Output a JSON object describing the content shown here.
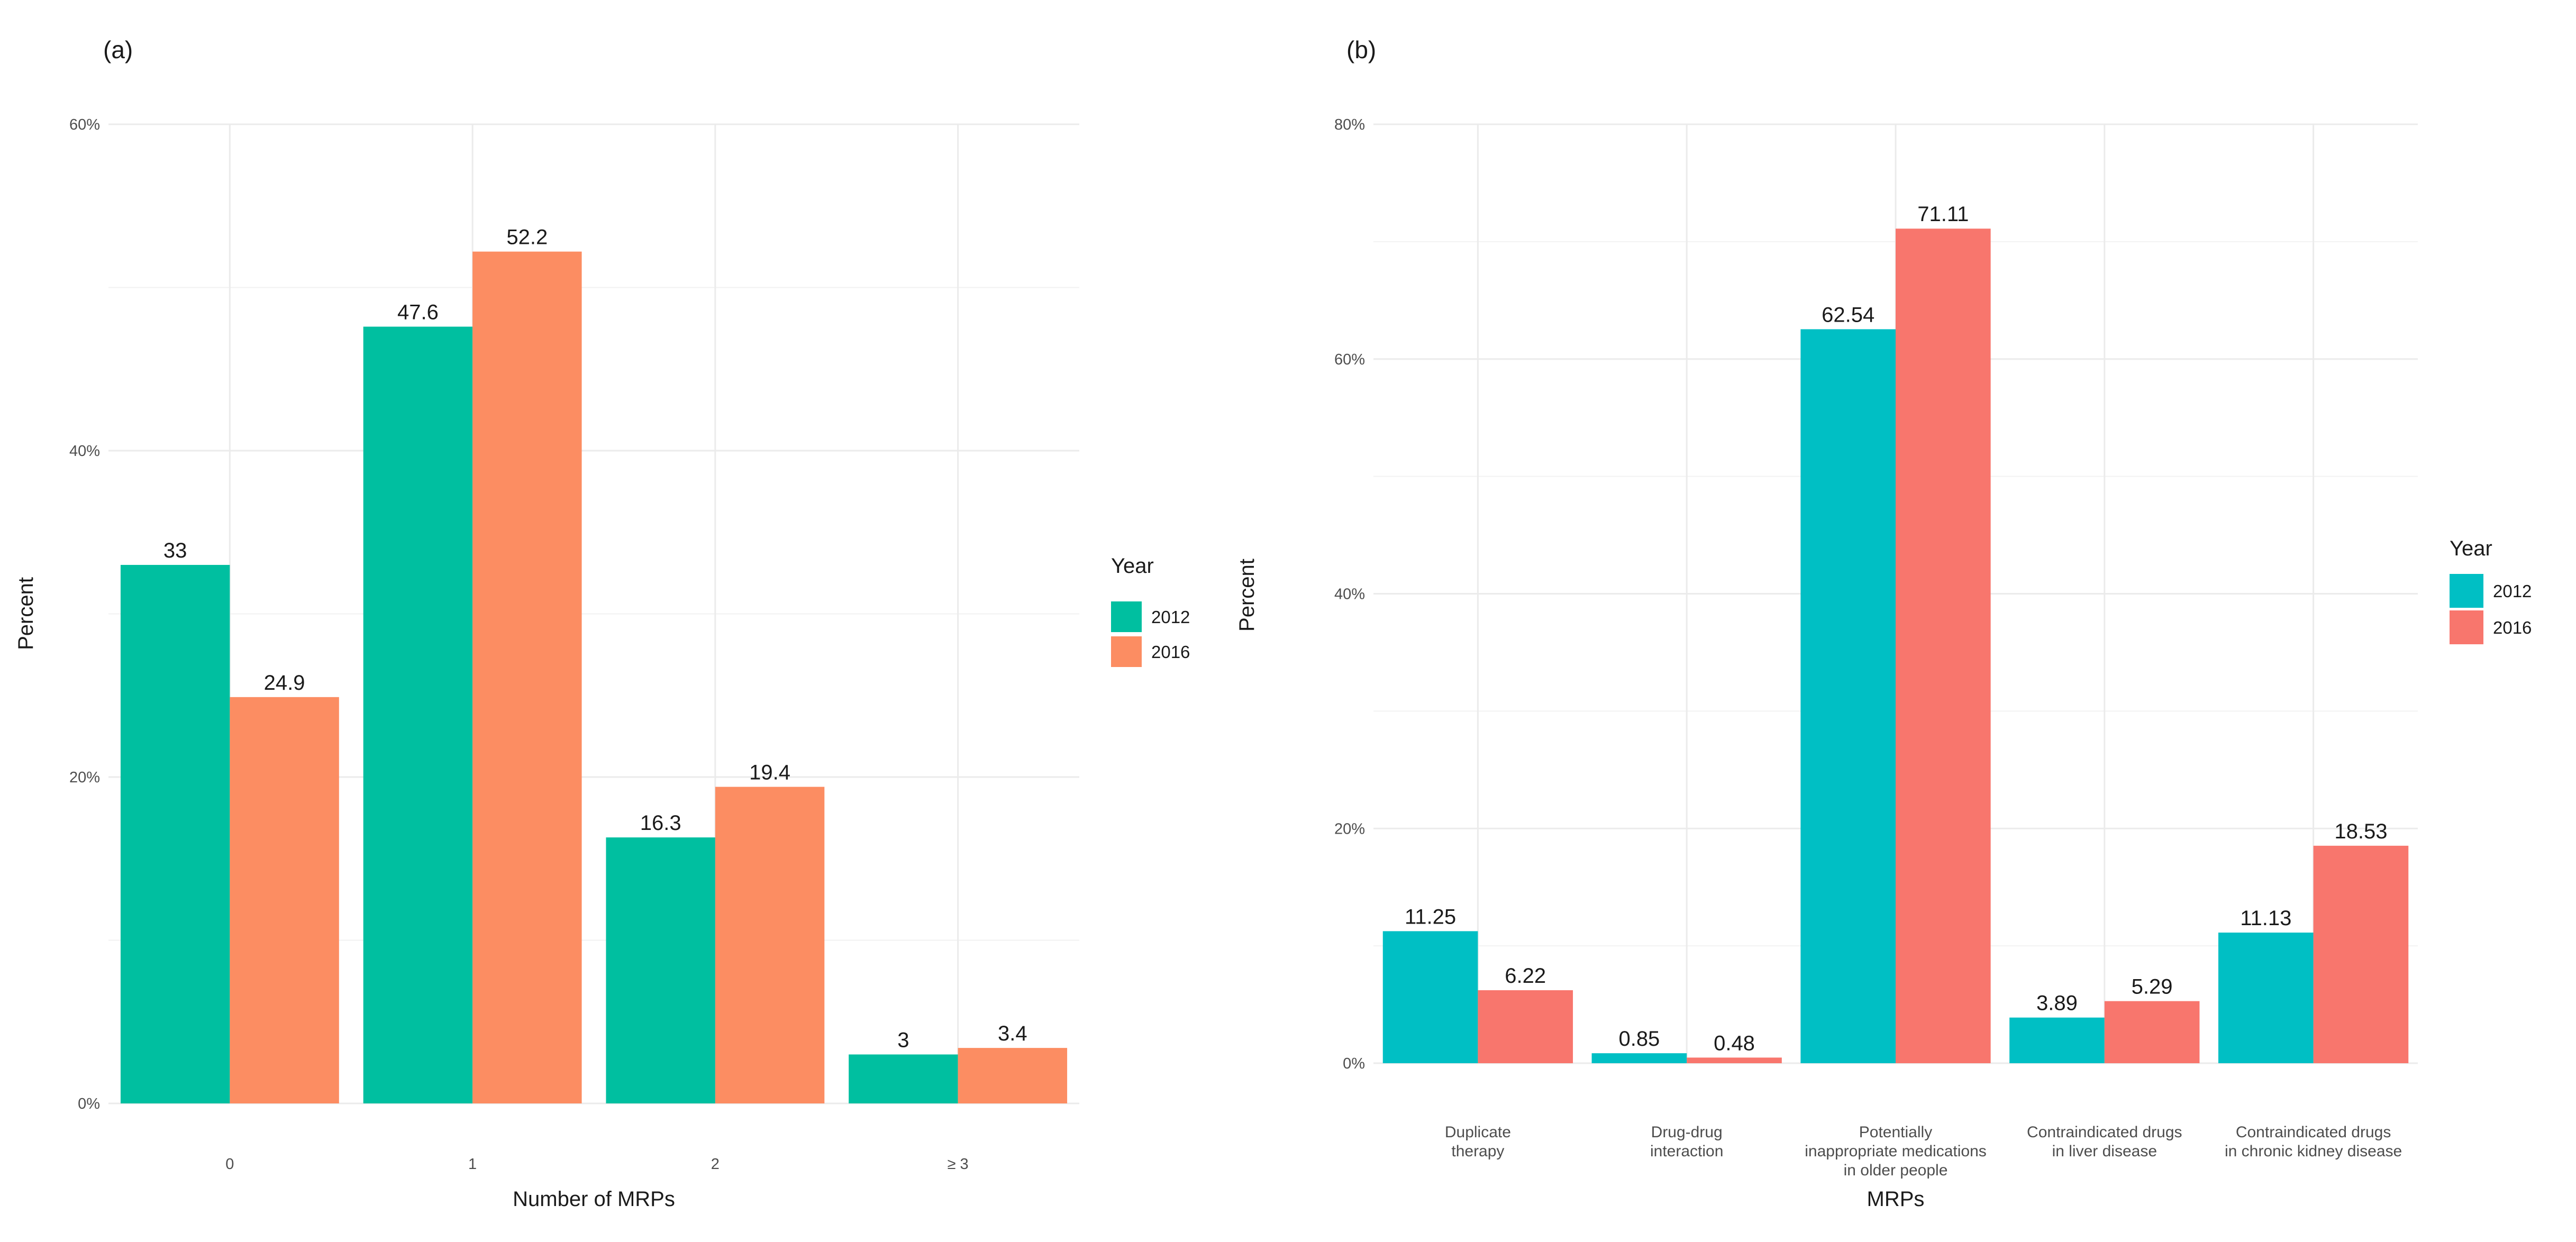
{
  "chart_data": [
    {
      "panel": "(a)",
      "type": "bar",
      "categories": [
        "0",
        "1",
        "2",
        "≥ 3"
      ],
      "series": [
        {
          "name": "2012",
          "values": [
            33,
            47.6,
            16.3,
            3
          ],
          "color": "#00BFA0"
        },
        {
          "name": "2016",
          "values": [
            24.9,
            52.2,
            19.4,
            3.4
          ],
          "color": "#FC8D62"
        }
      ],
      "data_labels": [
        [
          "33",
          "47.6",
          "16.3",
          "3"
        ],
        [
          "24.9",
          "52.2",
          "19.4",
          "3.4"
        ]
      ],
      "xlabel": "Number of MRPs",
      "ylabel": "Percent",
      "ylim": [
        0,
        60
      ],
      "yticks": [
        0,
        20,
        40,
        60
      ],
      "ytick_labels": [
        "0%",
        "20%",
        "40%",
        "60%"
      ],
      "grid": true,
      "legend_title": "Year",
      "legend_placement": "right"
    },
    {
      "panel": "(b)",
      "type": "bar",
      "categories": [
        [
          "Duplicate",
          "therapy"
        ],
        [
          "Drug-drug",
          "interaction"
        ],
        [
          "Potentially",
          "inappropriate medications",
          "in older people"
        ],
        [
          "Contraindicated drugs",
          "in liver disease"
        ],
        [
          "Contraindicated drugs",
          "in chronic kidney disease"
        ]
      ],
      "series": [
        {
          "name": "2012",
          "values": [
            11.25,
            0.85,
            62.54,
            3.89,
            11.13
          ],
          "color": "#00BFC4"
        },
        {
          "name": "2016",
          "values": [
            6.22,
            0.48,
            71.11,
            5.29,
            18.53
          ],
          "color": "#F8766D"
        }
      ],
      "data_labels": [
        [
          "11.25",
          "0.85",
          "62.54",
          "3.89",
          "11.13"
        ],
        [
          "6.22",
          "0.48",
          "71.11",
          "5.29",
          "18.53"
        ]
      ],
      "xlabel": "MRPs",
      "ylabel": "Percent",
      "ylim": [
        0,
        80
      ],
      "yticks": [
        0,
        20,
        40,
        60,
        80
      ],
      "ytick_labels": [
        "0%",
        "20%",
        "40%",
        "60%",
        "80%"
      ],
      "grid": true,
      "legend_title": "Year",
      "legend_placement": "right"
    }
  ]
}
